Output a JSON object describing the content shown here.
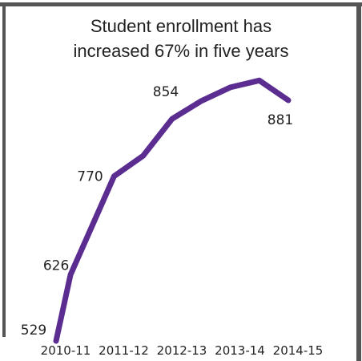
{
  "chart_data": {
    "type": "line",
    "title_lines": [
      "Student enrollment has",
      "increased 67% in five years"
    ],
    "categories": [
      "2010-11",
      "2011-12",
      "2012-13",
      "2013-14",
      "2014-15"
    ],
    "x": [
      0,
      0.25,
      1,
      1.5,
      2,
      2.5,
      3,
      3.5,
      4
    ],
    "values": [
      529,
      626,
      770,
      800,
      854,
      880,
      900,
      910,
      881
    ],
    "data_labels": [
      {
        "x": 0,
        "text": "529"
      },
      {
        "x": 0.25,
        "text": "626"
      },
      {
        "x": 1,
        "text": "770"
      },
      {
        "x": 2,
        "text": "854"
      },
      {
        "x": 4,
        "text": "881"
      }
    ],
    "line_color": "#5b2d91",
    "frame_color": "#555555",
    "grid": false,
    "legend": "none"
  }
}
